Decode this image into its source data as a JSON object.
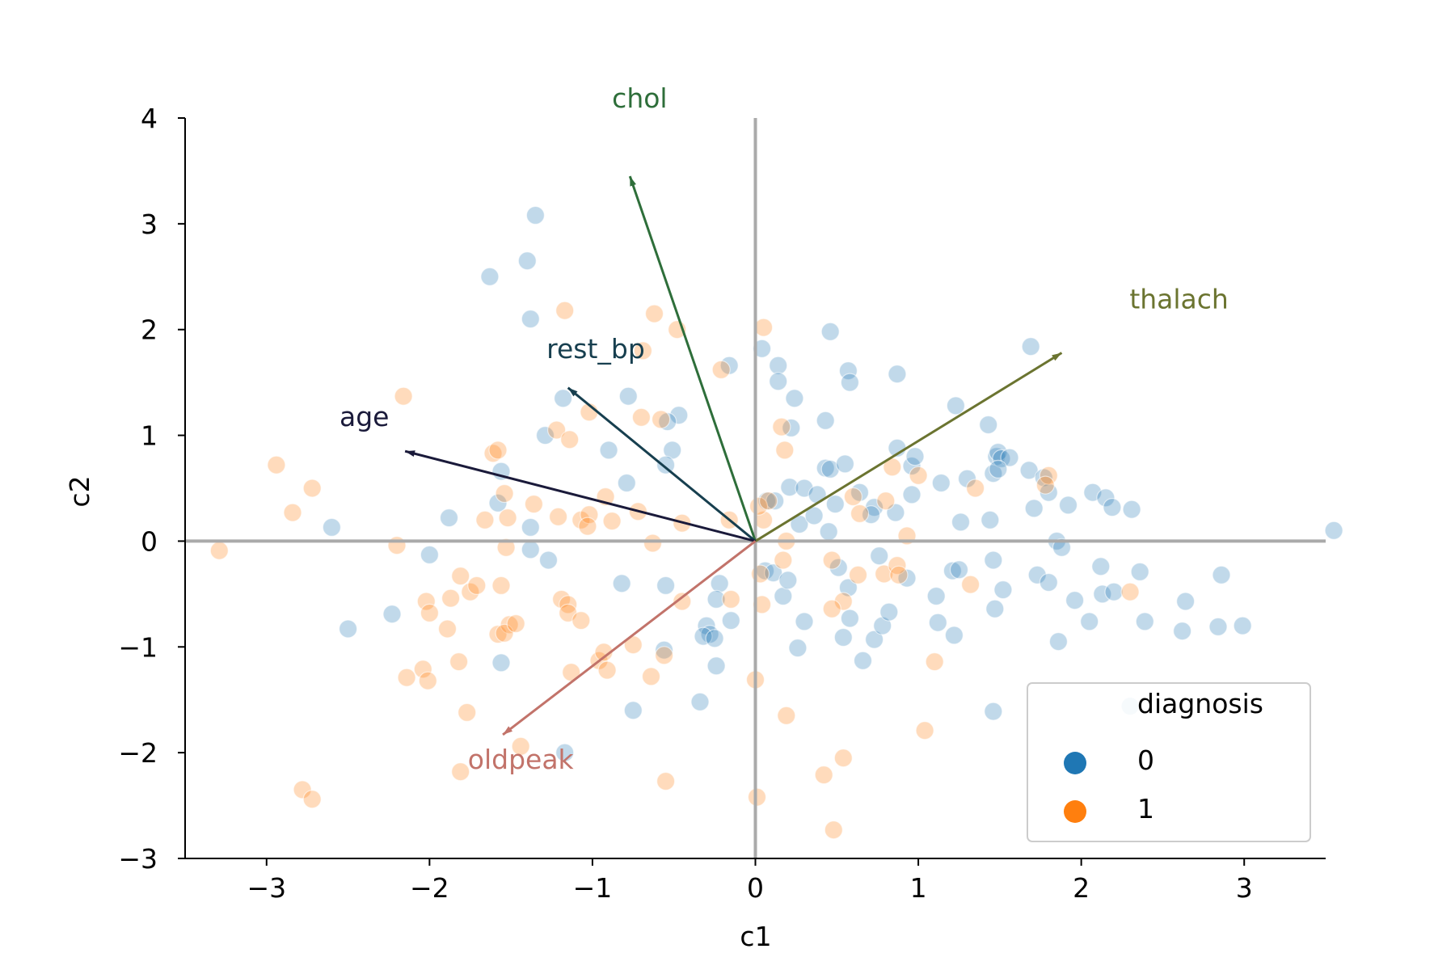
{
  "chart_data": {
    "type": "scatter",
    "xlabel": "c1",
    "ylabel": "c2",
    "xlim": [
      -3.5,
      3.5
    ],
    "ylim": [
      -3,
      4
    ],
    "x_ticks": [
      {
        "value": -3,
        "label": "−3"
      },
      {
        "value": -2,
        "label": "−2"
      },
      {
        "value": -1,
        "label": "−1"
      },
      {
        "value": 0,
        "label": "0"
      },
      {
        "value": 1,
        "label": "1"
      },
      {
        "value": 2,
        "label": "2"
      },
      {
        "value": 3,
        "label": "3"
      }
    ],
    "y_ticks": [
      {
        "value": -3,
        "label": "−3"
      },
      {
        "value": -2,
        "label": "−2"
      },
      {
        "value": -1,
        "label": "−1"
      },
      {
        "value": 0,
        "label": "0"
      },
      {
        "value": 1,
        "label": "1"
      },
      {
        "value": 2,
        "label": "2"
      },
      {
        "value": 3,
        "label": "3"
      },
      {
        "value": 4,
        "label": "4"
      }
    ],
    "grid": false,
    "reference_lines": {
      "x0": true,
      "y0": true,
      "color": "#aaaaaa"
    },
    "legend": {
      "title": "diagnosis",
      "placement": "lower-right",
      "entries": [
        {
          "label": "0",
          "color": "#1f77b4"
        },
        {
          "label": "1",
          "color": "#ff7f0e"
        }
      ]
    },
    "loadings": [
      {
        "name": "chol",
        "x": -0.77,
        "y": 3.45,
        "color": "#2e6e3a",
        "label_x": -0.71,
        "label_y": 4.1
      },
      {
        "name": "thalach",
        "x": 1.88,
        "y": 1.78,
        "color": "#6b7430",
        "label_x": 2.6,
        "label_y": 2.2
      },
      {
        "name": "rest_bp",
        "x": -1.15,
        "y": 1.45,
        "color": "#173f4f",
        "label_x": -0.98,
        "label_y": 1.73
      },
      {
        "name": "age",
        "x": -2.15,
        "y": 0.85,
        "color": "#1a1a3a",
        "label_x": -2.4,
        "label_y": 1.09
      },
      {
        "name": "oldpeak",
        "x": -1.55,
        "y": -1.83,
        "color": "#c2736a",
        "label_x": -1.44,
        "label_y": -2.15
      }
    ],
    "series": [
      {
        "name": "0",
        "color": "#1f77b4",
        "points": [
          [
            -1.35,
            3.08
          ],
          [
            -1.4,
            2.65
          ],
          [
            -1.63,
            2.5
          ],
          [
            -1.38,
            2.1
          ],
          [
            -0.78,
            1.37
          ],
          [
            -0.47,
            1.19
          ],
          [
            -1.18,
            1.35
          ],
          [
            -1.29,
            1.0
          ],
          [
            -0.54,
            1.13
          ],
          [
            -0.9,
            0.86
          ],
          [
            -0.51,
            0.86
          ],
          [
            -0.55,
            0.72
          ],
          [
            -1.56,
            0.66
          ],
          [
            -0.79,
            0.55
          ],
          [
            -1.58,
            0.36
          ],
          [
            -1.88,
            0.22
          ],
          [
            -1.38,
            0.13
          ],
          [
            -2.6,
            0.13
          ],
          [
            -2.0,
            -0.13
          ],
          [
            -1.38,
            -0.08
          ],
          [
            -1.27,
            -0.18
          ],
          [
            -0.82,
            -0.4
          ],
          [
            -0.55,
            -0.42
          ],
          [
            -0.22,
            -0.4
          ],
          [
            -0.24,
            -0.55
          ],
          [
            -0.15,
            -0.75
          ],
          [
            -2.5,
            -0.83
          ],
          [
            -2.23,
            -0.69
          ],
          [
            -0.3,
            -0.8
          ],
          [
            -0.28,
            -0.88
          ],
          [
            -0.32,
            -0.9
          ],
          [
            -0.25,
            -0.92
          ],
          [
            -0.56,
            -1.03
          ],
          [
            -1.56,
            -1.15
          ],
          [
            -0.24,
            -1.18
          ],
          [
            -0.75,
            -1.6
          ],
          [
            -0.34,
            -1.52
          ],
          [
            -1.17,
            -2.0
          ],
          [
            0.04,
            1.82
          ],
          [
            0.14,
            1.66
          ],
          [
            -0.16,
            1.66
          ],
          [
            0.14,
            1.51
          ],
          [
            0.24,
            1.35
          ],
          [
            0.46,
            1.98
          ],
          [
            0.57,
            1.61
          ],
          [
            0.58,
            1.5
          ],
          [
            0.87,
            1.58
          ],
          [
            0.43,
            1.14
          ],
          [
            0.22,
            1.07
          ],
          [
            0.07,
            0.38
          ],
          [
            0.12,
            0.38
          ],
          [
            0.21,
            0.51
          ],
          [
            0.3,
            0.5
          ],
          [
            0.38,
            0.44
          ],
          [
            0.27,
            0.16
          ],
          [
            0.36,
            0.24
          ],
          [
            0.45,
            0.09
          ],
          [
            0.43,
            0.69
          ],
          [
            0.46,
            0.68
          ],
          [
            0.55,
            0.73
          ],
          [
            0.49,
            0.35
          ],
          [
            0.64,
            0.46
          ],
          [
            0.73,
            0.32
          ],
          [
            0.71,
            0.25
          ],
          [
            0.87,
            0.88
          ],
          [
            0.96,
            0.71
          ],
          [
            0.98,
            0.8
          ],
          [
            0.86,
            0.27
          ],
          [
            0.96,
            0.44
          ],
          [
            1.14,
            0.55
          ],
          [
            1.23,
            1.28
          ],
          [
            1.26,
            0.18
          ],
          [
            1.3,
            0.59
          ],
          [
            1.43,
            1.1
          ],
          [
            1.44,
            0.2
          ],
          [
            1.46,
            0.64
          ],
          [
            1.48,
            0.8
          ],
          [
            1.49,
            0.84
          ],
          [
            1.51,
            0.78
          ],
          [
            1.56,
            0.79
          ],
          [
            1.49,
            0.68
          ],
          [
            1.68,
            0.67
          ],
          [
            1.69,
            1.84
          ],
          [
            1.71,
            0.31
          ],
          [
            1.77,
            0.6
          ],
          [
            1.8,
            0.46
          ],
          [
            1.92,
            0.34
          ],
          [
            2.07,
            0.46
          ],
          [
            2.15,
            0.41
          ],
          [
            2.19,
            0.32
          ],
          [
            2.31,
            0.3
          ],
          [
            1.85,
            0.0
          ],
          [
            1.88,
            -0.06
          ],
          [
            1.73,
            -0.32
          ],
          [
            1.8,
            -0.39
          ],
          [
            2.12,
            -0.24
          ],
          [
            2.13,
            -0.5
          ],
          [
            2.2,
            -0.48
          ],
          [
            2.36,
            -0.29
          ],
          [
            1.86,
            -0.95
          ],
          [
            1.96,
            -0.56
          ],
          [
            2.05,
            -0.76
          ],
          [
            2.39,
            -0.76
          ],
          [
            2.64,
            -0.57
          ],
          [
            2.62,
            -0.85
          ],
          [
            2.84,
            -0.81
          ],
          [
            2.86,
            -0.32
          ],
          [
            2.99,
            -0.8
          ],
          [
            3.55,
            0.1
          ],
          [
            0.06,
            -0.28
          ],
          [
            0.11,
            -0.3
          ],
          [
            0.17,
            -0.52
          ],
          [
            0.2,
            -0.37
          ],
          [
            0.3,
            -0.76
          ],
          [
            0.26,
            -1.01
          ],
          [
            0.51,
            -0.25
          ],
          [
            0.54,
            -0.91
          ],
          [
            0.57,
            -0.44
          ],
          [
            0.58,
            -0.73
          ],
          [
            0.66,
            -1.13
          ],
          [
            0.73,
            -0.93
          ],
          [
            0.78,
            -0.8
          ],
          [
            0.82,
            -0.67
          ],
          [
            0.76,
            -0.14
          ],
          [
            0.93,
            -0.35
          ],
          [
            1.11,
            -0.52
          ],
          [
            1.12,
            -0.77
          ],
          [
            1.22,
            -0.89
          ],
          [
            1.21,
            -0.28
          ],
          [
            1.25,
            -0.27
          ],
          [
            1.46,
            -0.18
          ],
          [
            1.47,
            -0.64
          ],
          [
            1.52,
            -0.46
          ],
          [
            1.46,
            -1.61
          ],
          [
            2.3,
            -1.56
          ]
        ]
      },
      {
        "name": "1",
        "color": "#ff7f0e",
        "points": [
          [
            -1.17,
            2.18
          ],
          [
            -0.62,
            2.15
          ],
          [
            -0.48,
            2.0
          ],
          [
            -0.69,
            1.8
          ],
          [
            -0.21,
            1.62
          ],
          [
            -1.02,
            1.22
          ],
          [
            -0.7,
            1.17
          ],
          [
            -0.58,
            1.15
          ],
          [
            -1.22,
            1.05
          ],
          [
            -1.14,
            0.96
          ],
          [
            -1.61,
            0.83
          ],
          [
            -1.58,
            0.86
          ],
          [
            -2.16,
            1.37
          ],
          [
            -2.94,
            0.72
          ],
          [
            -2.72,
            0.5
          ],
          [
            -2.84,
            0.27
          ],
          [
            -1.54,
            0.45
          ],
          [
            -0.92,
            0.42
          ],
          [
            -1.36,
            0.35
          ],
          [
            -0.72,
            0.28
          ],
          [
            -1.52,
            0.22
          ],
          [
            -1.66,
            0.2
          ],
          [
            -1.21,
            0.23
          ],
          [
            -1.07,
            0.2
          ],
          [
            -1.02,
            0.25
          ],
          [
            -1.03,
            0.14
          ],
          [
            -0.88,
            0.19
          ],
          [
            -0.45,
            0.17
          ],
          [
            -0.16,
            0.2
          ],
          [
            -0.63,
            -0.02
          ],
          [
            -2.2,
            -0.04
          ],
          [
            -1.53,
            -0.06
          ],
          [
            -3.29,
            -0.09
          ],
          [
            -1.81,
            -0.33
          ],
          [
            -1.75,
            -0.48
          ],
          [
            -1.71,
            -0.42
          ],
          [
            -1.56,
            -0.42
          ],
          [
            -2.02,
            -0.57
          ],
          [
            -1.87,
            -0.54
          ],
          [
            -2.0,
            -0.68
          ],
          [
            -1.89,
            -0.83
          ],
          [
            -1.58,
            -0.88
          ],
          [
            -1.51,
            -0.79
          ],
          [
            -1.54,
            -0.87
          ],
          [
            -1.47,
            -0.78
          ],
          [
            -1.19,
            -0.55
          ],
          [
            -1.15,
            -0.6
          ],
          [
            -1.15,
            -0.68
          ],
          [
            -1.07,
            -0.75
          ],
          [
            -0.75,
            -0.98
          ],
          [
            -0.96,
            -1.13
          ],
          [
            -0.93,
            -1.05
          ],
          [
            -0.91,
            -1.22
          ],
          [
            -1.13,
            -1.24
          ],
          [
            -0.56,
            -1.08
          ],
          [
            -0.64,
            -1.28
          ],
          [
            -2.14,
            -1.29
          ],
          [
            -2.04,
            -1.21
          ],
          [
            -2.01,
            -1.32
          ],
          [
            -1.82,
            -1.14
          ],
          [
            -1.77,
            -1.62
          ],
          [
            -1.44,
            -1.94
          ],
          [
            -1.81,
            -2.18
          ],
          [
            -2.78,
            -2.35
          ],
          [
            -2.72,
            -2.44
          ],
          [
            -0.45,
            -0.57
          ],
          [
            -0.15,
            -0.55
          ],
          [
            -0.55,
            -2.27
          ],
          [
            0.05,
            2.02
          ],
          [
            0.16,
            1.08
          ],
          [
            0.18,
            0.86
          ],
          [
            0.05,
            0.2
          ],
          [
            0.02,
            0.33
          ],
          [
            0.08,
            0.38
          ],
          [
            0.19,
            0.0
          ],
          [
            0.17,
            -0.18
          ],
          [
            0.03,
            -0.31
          ],
          [
            0.04,
            -0.6
          ],
          [
            0.6,
            0.42
          ],
          [
            0.64,
            0.26
          ],
          [
            0.84,
            0.7
          ],
          [
            0.8,
            0.38
          ],
          [
            0.93,
            0.05
          ],
          [
            1.0,
            0.62
          ],
          [
            1.35,
            0.5
          ],
          [
            1.8,
            0.62
          ],
          [
            1.78,
            0.53
          ],
          [
            0.47,
            -0.18
          ],
          [
            0.54,
            -0.57
          ],
          [
            0.47,
            -0.64
          ],
          [
            0.63,
            -0.32
          ],
          [
            0.79,
            -0.31
          ],
          [
            0.87,
            -0.23
          ],
          [
            0.88,
            -0.32
          ],
          [
            1.32,
            -0.41
          ],
          [
            2.3,
            -0.48
          ],
          [
            0.0,
            -1.31
          ],
          [
            0.19,
            -1.65
          ],
          [
            1.1,
            -1.14
          ],
          [
            1.04,
            -1.79
          ],
          [
            0.54,
            -2.05
          ],
          [
            0.42,
            -2.21
          ],
          [
            0.48,
            -2.73
          ],
          [
            0.01,
            -2.42
          ]
        ]
      }
    ]
  }
}
